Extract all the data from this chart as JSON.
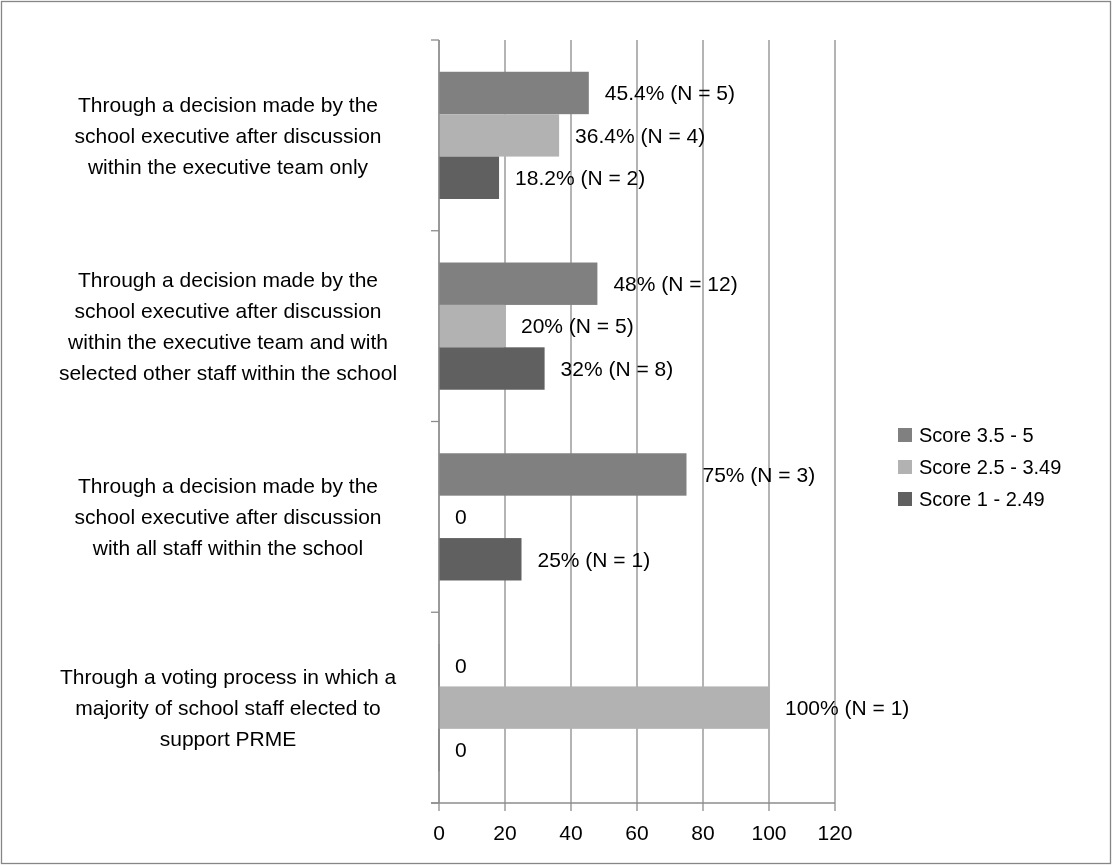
{
  "chart_data": {
    "type": "bar",
    "orientation": "horizontal",
    "categories": [
      "Through a decision made by the school executive after discussion within the executive team only",
      "Through a decision made by the school executive after discussion within the executive team and with selected other staff within the school",
      "Through a decision made by the school executive after discussion with all staff within the school",
      "Through a voting process in which a majority of school staff elected to support PRME"
    ],
    "series": [
      {
        "name": "Score 3.5 - 5",
        "color": "#808080",
        "values": [
          45.4,
          48,
          75,
          0
        ],
        "value_labels": [
          "45.4% (N = 5)",
          "48% (N = 12)",
          "75% (N = 3)",
          "0"
        ]
      },
      {
        "name": "Score 2.5 - 3.49",
        "color": "#b2b2b2",
        "values": [
          36.4,
          20,
          0,
          100
        ],
        "value_labels": [
          "36.4% (N = 4)",
          "20% (N = 5)",
          "0",
          "100% (N = 1)"
        ]
      },
      {
        "name": "Score 1 - 2.49",
        "color": "#606060",
        "values": [
          18.2,
          32,
          25,
          0
        ],
        "value_labels": [
          "18.2% (N = 2)",
          "32% (N = 8)",
          "25% (N = 1)",
          "0"
        ]
      }
    ],
    "xlim": [
      0,
      120
    ],
    "xticks": [
      0,
      20,
      40,
      60,
      80,
      100,
      120
    ],
    "grid": "x",
    "legend": "right"
  }
}
